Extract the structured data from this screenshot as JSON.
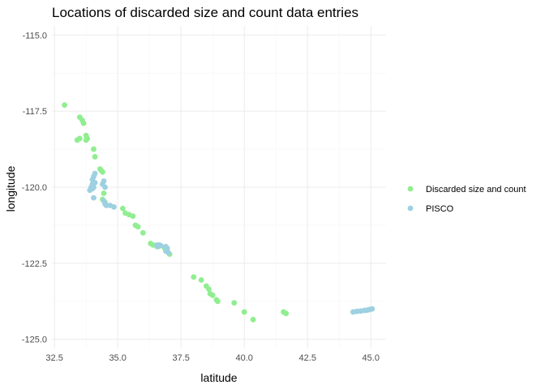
{
  "chart_data": {
    "type": "scatter",
    "title": "Locations of discarded size and count data entries",
    "xlabel": "latitude",
    "ylabel": "longitude",
    "xlim": [
      32.4,
      45.6
    ],
    "ylim": [
      -125.3,
      -114.7
    ],
    "x_ticks": [
      32.5,
      35.0,
      37.5,
      40.0,
      42.5,
      45.0
    ],
    "x_tick_labels": [
      "32.5",
      "35.0",
      "37.5",
      "40.0",
      "42.5",
      "45.0"
    ],
    "y_ticks": [
      -125.0,
      -122.5,
      -120.0,
      -117.5,
      -115.0
    ],
    "y_tick_labels": [
      "-125.0",
      "-122.5",
      "-120.0",
      "-117.5",
      "-115.0"
    ],
    "grid": true,
    "legend_position": "right",
    "series": [
      {
        "name": "Discarded size and count",
        "color": "#90EE90",
        "points": [
          [
            32.9,
            -117.3
          ],
          [
            33.5,
            -117.7
          ],
          [
            33.6,
            -117.8
          ],
          [
            33.65,
            -117.9
          ],
          [
            33.4,
            -118.45
          ],
          [
            33.5,
            -118.4
          ],
          [
            33.75,
            -118.3
          ],
          [
            33.8,
            -118.4
          ],
          [
            33.75,
            -118.45
          ],
          [
            34.05,
            -118.75
          ],
          [
            34.1,
            -119.0
          ],
          [
            34.3,
            -119.4
          ],
          [
            34.4,
            -119.5
          ],
          [
            34.35,
            -119.45
          ],
          [
            34.45,
            -120.2
          ],
          [
            34.4,
            -120.4
          ],
          [
            34.5,
            -120.5
          ],
          [
            35.2,
            -120.7
          ],
          [
            35.3,
            -120.85
          ],
          [
            35.45,
            -120.9
          ],
          [
            35.6,
            -120.95
          ],
          [
            35.7,
            -121.25
          ],
          [
            35.8,
            -121.3
          ],
          [
            36.0,
            -121.5
          ],
          [
            36.3,
            -121.85
          ],
          [
            36.4,
            -121.9
          ],
          [
            36.55,
            -121.95
          ],
          [
            36.85,
            -122.0
          ],
          [
            36.95,
            -122.05
          ],
          [
            37.05,
            -122.2
          ],
          [
            38.0,
            -122.95
          ],
          [
            38.3,
            -123.05
          ],
          [
            38.5,
            -123.25
          ],
          [
            38.6,
            -123.35
          ],
          [
            38.65,
            -123.5
          ],
          [
            38.75,
            -123.55
          ],
          [
            38.9,
            -123.7
          ],
          [
            38.95,
            -123.75
          ],
          [
            39.6,
            -123.8
          ],
          [
            40.0,
            -124.1
          ],
          [
            40.35,
            -124.35
          ],
          [
            41.55,
            -124.1
          ],
          [
            41.65,
            -124.15
          ]
        ]
      },
      {
        "name": "PISCO",
        "color": "#9DD0E0",
        "points": [
          [
            33.9,
            -120.1
          ],
          [
            34.0,
            -120.05
          ],
          [
            34.05,
            -120.35
          ],
          [
            34.1,
            -119.55
          ],
          [
            34.05,
            -119.65
          ],
          [
            34.0,
            -119.75
          ],
          [
            34.0,
            -119.9
          ],
          [
            33.95,
            -120.0
          ],
          [
            34.1,
            -119.85
          ],
          [
            34.05,
            -120.0
          ],
          [
            34.45,
            -119.8
          ],
          [
            34.4,
            -119.9
          ],
          [
            34.5,
            -120.0
          ],
          [
            34.45,
            -120.45
          ],
          [
            34.5,
            -120.55
          ],
          [
            34.55,
            -120.6
          ],
          [
            34.7,
            -120.6
          ],
          [
            34.85,
            -120.65
          ],
          [
            36.55,
            -121.9
          ],
          [
            36.6,
            -121.95
          ],
          [
            36.65,
            -121.9
          ],
          [
            36.7,
            -121.92
          ],
          [
            36.9,
            -121.95
          ],
          [
            36.95,
            -122.0
          ],
          [
            36.9,
            -122.1
          ],
          [
            37.0,
            -122.15
          ],
          [
            44.3,
            -124.1
          ],
          [
            44.45,
            -124.08
          ],
          [
            44.6,
            -124.07
          ],
          [
            44.75,
            -124.05
          ],
          [
            44.85,
            -124.04
          ],
          [
            44.95,
            -124.02
          ],
          [
            45.05,
            -124.0
          ]
        ]
      }
    ]
  }
}
